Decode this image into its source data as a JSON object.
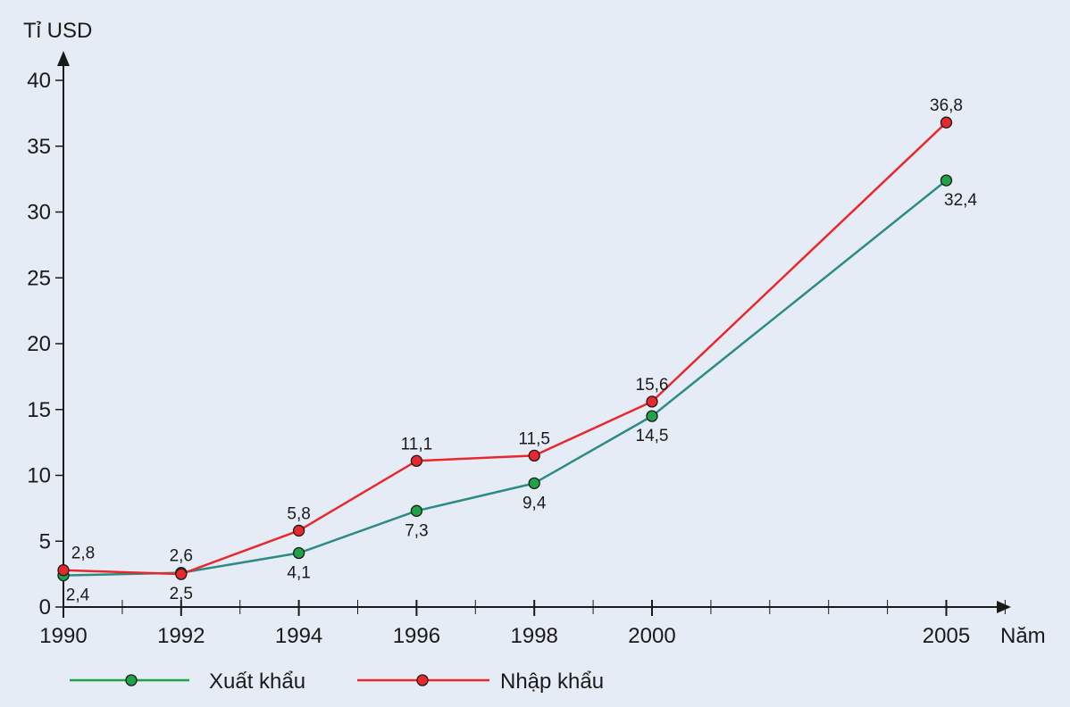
{
  "chart_data": {
    "type": "line",
    "title": "",
    "ylabel": "Tỉ USD",
    "xlabel": "Năm",
    "x": [
      1990,
      1992,
      1994,
      1996,
      1998,
      2000,
      2005
    ],
    "xticks": [
      "1990",
      "1992",
      "1994",
      "1996",
      "1998",
      "2000",
      "2005"
    ],
    "xlim": [
      1990,
      2006
    ],
    "ylim": [
      0,
      40
    ],
    "yticks": [
      "0",
      "5",
      "10",
      "15",
      "20",
      "25",
      "30",
      "35",
      "40"
    ],
    "grid": false,
    "legend_position": "bottom",
    "series": [
      {
        "name": "Xuất khẩu",
        "color": "#2e8b84",
        "legend_line_color": "#1fa347",
        "marker_color": "#1fa347",
        "values": [
          2.4,
          2.6,
          4.1,
          7.3,
          9.4,
          14.5,
          32.4
        ],
        "labels": [
          "2,4",
          "2,6",
          "4,1",
          "7,3",
          "9,4",
          "14,5",
          "32,4"
        ]
      },
      {
        "name": "Nhập khẩu",
        "color": "#e8282d",
        "legend_line_color": "#e8282d",
        "marker_color": "#e8282d",
        "values": [
          2.8,
          2.5,
          5.8,
          11.1,
          11.5,
          15.6,
          36.8
        ],
        "labels": [
          "2,8",
          "2,5",
          "5,8",
          "11,1",
          "11,5",
          "15,6",
          "36,8"
        ]
      }
    ]
  }
}
